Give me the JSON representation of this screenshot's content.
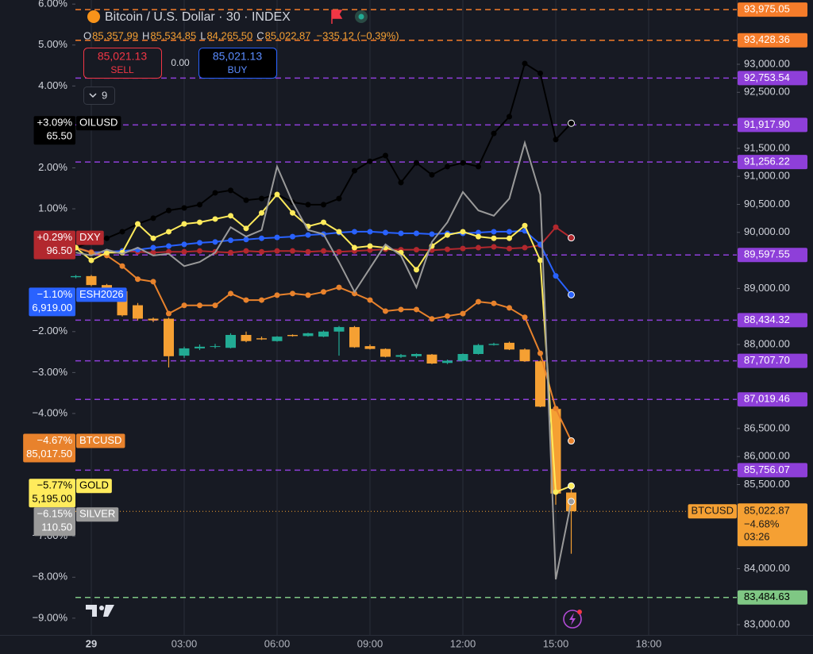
{
  "header": {
    "title": "Bitcoin / U.S. Dollar · 30 · INDEX",
    "ohlc": [
      {
        "key": "O",
        "value": "85,357.99"
      },
      {
        "key": "H",
        "value": "85,534.85"
      },
      {
        "key": "L",
        "value": "84,265.50"
      },
      {
        "key": "C",
        "value": "85,022.87"
      }
    ],
    "change": "−335.12 (−0.39%)"
  },
  "trade": {
    "sell_price": "85,021.13",
    "sell_label": "SELL",
    "spread": "0.00",
    "buy_price": "85,021.13",
    "buy_label": "BUY"
  },
  "indicators_count": "9",
  "chart_data": {
    "type": "candlestick",
    "x": [
      "23:30",
      "00:00",
      "00:30",
      "01:00",
      "01:30",
      "02:00",
      "02:30",
      "03:00",
      "03:30",
      "04:00",
      "04:30",
      "05:00",
      "05:30",
      "06:00",
      "06:30",
      "07:00",
      "07:30",
      "08:00",
      "08:30",
      "09:00",
      "09:30",
      "10:00",
      "10:30",
      "11:00",
      "11:30",
      "12:00",
      "12:30",
      "13:00",
      "13:30",
      "14:00",
      "14:30",
      "15:00",
      "15:30"
    ],
    "open": [
      89200,
      89220,
      89060,
      88950,
      88700,
      88460,
      88460,
      87800,
      87930,
      87960,
      87940,
      88170,
      88110,
      88060,
      88170,
      88150,
      88140,
      88230,
      88310,
      87970,
      87920,
      87780,
      87790,
      87820,
      87670,
      87710,
      87830,
      87990,
      88030,
      87910,
      87700,
      86850,
      85357.99
    ],
    "high": [
      89240,
      89240,
      89080,
      88960,
      88740,
      88480,
      88480,
      87960,
      88000,
      88010,
      88200,
      88230,
      88140,
      88150,
      88180,
      88210,
      88250,
      88330,
      88330,
      88000,
      87930,
      87830,
      87840,
      87830,
      87730,
      87840,
      88010,
      88030,
      88050,
      87930,
      87720,
      86870,
      85534.85
    ],
    "low": [
      89180,
      89040,
      88880,
      88500,
      88430,
      88400,
      87590,
      87760,
      87900,
      87930,
      87930,
      88040,
      88080,
      88050,
      88140,
      88140,
      88130,
      87800,
      87940,
      87910,
      87770,
      87760,
      87760,
      87650,
      87650,
      87700,
      87820,
      87980,
      87900,
      87690,
      86880,
      85140,
      84265.5
    ],
    "close": [
      89220,
      89060,
      88950,
      88520,
      88460,
      88430,
      87790,
      87930,
      87960,
      87970,
      88170,
      88060,
      88090,
      88140,
      88150,
      88200,
      88230,
      88310,
      87950,
      87920,
      87780,
      87810,
      87830,
      87660,
      87710,
      87830,
      87990,
      88010,
      87910,
      87700,
      86890,
      85340,
      85022.87
    ],
    "up_color": "#22ab94",
    "down_color": "#f5a033",
    "ylim": [
      82816,
      94147
    ],
    "yticks": [
      {
        "value": 93000,
        "label": "93,000.00"
      },
      {
        "value": 92500,
        "label": "92,500.00"
      },
      {
        "value": 91500,
        "label": "91,500.00"
      },
      {
        "value": 91000,
        "label": "91,000.00"
      },
      {
        "value": 90500,
        "label": "90,500.00"
      },
      {
        "value": 90000,
        "label": "90,000.00"
      },
      {
        "value": 89000,
        "label": "89,000.00"
      },
      {
        "value": 88000,
        "label": "88,000.00"
      },
      {
        "value": 86500,
        "label": "86,500.00"
      },
      {
        "value": 86000,
        "label": "86,000.00"
      },
      {
        "value": 85500,
        "label": "85,500.00"
      },
      {
        "value": 84000,
        "label": "84,000.00"
      },
      {
        "value": 83000,
        "label": "83,000.00"
      }
    ],
    "y2lim": [
      -9.41,
      6.1
    ],
    "y2ticks": [
      {
        "value": 6,
        "label": "6.00%"
      },
      {
        "value": 5,
        "label": "5.00%"
      },
      {
        "value": 4,
        "label": "4.00%"
      },
      {
        "value": 2,
        "label": "2.00%"
      },
      {
        "value": 1,
        "label": "1.00%"
      },
      {
        "value": -2,
        "label": "−2.00%"
      },
      {
        "value": -3,
        "label": "−3.00%"
      },
      {
        "value": -4,
        "label": "−4.00%"
      },
      {
        "value": -7,
        "label": "−7.00%"
      },
      {
        "value": -8,
        "label": "−8.00%"
      },
      {
        "value": -9,
        "label": "−9.00%"
      }
    ],
    "xticks": [
      {
        "value": "00:00",
        "label": "29"
      },
      "03:00",
      "06:00",
      "09:00",
      "12:00",
      "15:00",
      "18:00"
    ],
    "grid": "x",
    "series": [
      {
        "name": "OILUSD",
        "color": "#000000",
        "text_color": "#ffffff",
        "axis": "y2",
        "markers": true,
        "change_label": "+3.09%",
        "price_label": "65.50",
        "values": [
          0.05,
          0.19,
          0.28,
          0.44,
          0.63,
          0.77,
          0.96,
          1.02,
          1.1,
          1.39,
          1.45,
          1.21,
          1.25,
          1.35,
          1.16,
          1.1,
          1.1,
          1.25,
          1.93,
          2.16,
          2.3,
          1.64,
          2.12,
          1.83,
          2.03,
          2.12,
          2.03,
          2.84,
          3.25,
          4.55,
          4.31,
          2.69,
          3.09
        ]
      },
      {
        "name": "DXY",
        "color": "#b2282e",
        "text_color": "#ffffff",
        "axis": "y2",
        "markers": true,
        "change_label": "+0.29%",
        "price_label": "96.50",
        "values": [
          0.05,
          -0.05,
          -0.07,
          -0.03,
          -0.05,
          -0.07,
          -0.05,
          -0.05,
          -0.03,
          -0.05,
          -0.07,
          -0.03,
          -0.05,
          -0.03,
          -0.03,
          -0.05,
          -0.03,
          -0.05,
          -0.03,
          -0.01,
          0.01,
          0.0,
          0.0,
          -0.01,
          0.01,
          0.03,
          0.05,
          0.07,
          0.03,
          0.05,
          0.11,
          0.55,
          0.29
        ]
      },
      {
        "name": "ESH2026",
        "color": "#2962ff",
        "text_color": "#ffffff",
        "axis": "y2",
        "markers": true,
        "change_label": "−1.10%",
        "price_label": "6,919.00",
        "values": [
          0.05,
          -0.07,
          -0.05,
          -0.03,
          0.0,
          0.05,
          0.09,
          0.13,
          0.17,
          0.19,
          0.23,
          0.25,
          0.28,
          0.3,
          0.32,
          0.36,
          0.38,
          0.42,
          0.44,
          0.44,
          0.42,
          0.4,
          0.4,
          0.38,
          0.4,
          0.4,
          0.42,
          0.44,
          0.44,
          0.46,
          0.13,
          -0.64,
          -1.1
        ]
      },
      {
        "name": "BTCUSD",
        "color": "#e8822c",
        "text_color": "#ffffff",
        "axis": "y2",
        "markers": true,
        "change_label": "−4.67%",
        "price_label": "85,017.50",
        "values": [
          0.05,
          -0.07,
          -0.14,
          -0.4,
          -0.72,
          -0.78,
          -1.56,
          -1.36,
          -1.36,
          -1.36,
          -1.07,
          -1.23,
          -1.23,
          -1.11,
          -1.07,
          -1.11,
          -1.03,
          -0.92,
          -1.07,
          -1.23,
          -1.5,
          -1.46,
          -1.46,
          -1.69,
          -1.62,
          -1.56,
          -1.27,
          -1.31,
          -1.42,
          -1.65,
          -2.53,
          -3.88,
          -4.67
        ]
      },
      {
        "name": "GOLD",
        "color": "#ffeb5c",
        "text_color": "#000000",
        "axis": "y2",
        "markers": true,
        "change_label": "−5.77%",
        "price_label": "5,195.00",
        "values": [
          0.05,
          -0.26,
          -0.07,
          -0.07,
          0.63,
          0.28,
          0.44,
          0.63,
          0.67,
          0.75,
          0.83,
          0.52,
          0.9,
          1.35,
          0.9,
          0.57,
          0.67,
          0.44,
          0.05,
          0.09,
          0.05,
          -0.07,
          -0.49,
          0.09,
          0.36,
          0.44,
          0.32,
          0.28,
          0.28,
          0.59,
          -0.26,
          -5.92,
          -5.77
        ]
      },
      {
        "name": "SILVER",
        "color": "#9a9a9a",
        "text_color": "#ffffff",
        "axis": "y2",
        "markers": false,
        "change_label": "−6.15%",
        "price_label": "110.50",
        "values": [
          -0.07,
          -0.14,
          0.0,
          -0.1,
          0.05,
          -0.14,
          -0.1,
          -0.4,
          -0.3,
          -0.07,
          0.55,
          0.32,
          0.48,
          2.03,
          1.16,
          0.48,
          0.38,
          -0.3,
          -1.03,
          -0.45,
          0.13,
          -0.14,
          -0.92,
          0.19,
          0.67,
          1.41,
          0.96,
          0.83,
          1.25,
          2.61,
          1.35,
          -8.05,
          -6.15
        ]
      }
    ],
    "price_lines": [
      {
        "value": 93975.05,
        "label": "93,975.05",
        "color": "#f57c2a",
        "text_color": "#ffffff"
      },
      {
        "value": 93428.36,
        "label": "93,428.36",
        "color": "#f57c2a",
        "text_color": "#ffffff"
      },
      {
        "value": 92753.54,
        "label": "92,753.54",
        "color": "#8e3fd9",
        "text_color": "#ffffff"
      },
      {
        "value": 91917.9,
        "label": "91,917.90",
        "color": "#8e3fd9",
        "text_color": "#ffffff"
      },
      {
        "value": 91256.22,
        "label": "91,256.22",
        "color": "#8e3fd9",
        "text_color": "#ffffff"
      },
      {
        "value": 89597.55,
        "label": "89,597.55",
        "color": "#8e3fd9",
        "text_color": "#ffffff"
      },
      {
        "value": 88434.32,
        "label": "88,434.32",
        "color": "#8e3fd9",
        "text_color": "#ffffff"
      },
      {
        "value": 87707.7,
        "label": "87,707.70",
        "color": "#8e3fd9",
        "text_color": "#ffffff"
      },
      {
        "value": 87019.46,
        "label": "87,019.46",
        "color": "#8e3fd9",
        "text_color": "#ffffff"
      },
      {
        "value": 85756.07,
        "label": "85,756.07",
        "color": "#8e3fd9",
        "text_color": "#ffffff"
      },
      {
        "value": 83484.63,
        "label": "83,484.63",
        "color": "#7fc784",
        "text_color": "#000000"
      }
    ],
    "last_price": {
      "value": 85022.87,
      "label": "85,022.87",
      "change": "−4.68%",
      "countdown": "03:26",
      "name": "BTCUSD",
      "color": "#f5a033"
    }
  }
}
